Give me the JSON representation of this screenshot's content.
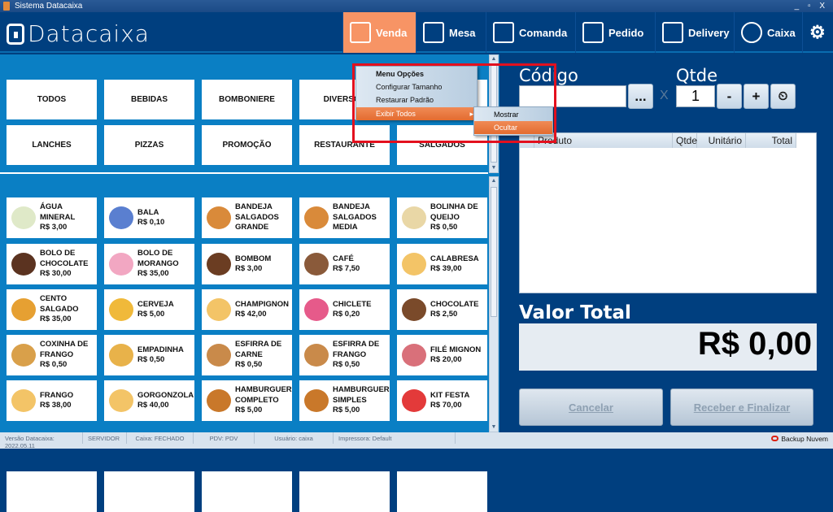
{
  "window": {
    "title": "Sistema Datacaixa",
    "controls": "_ ▫ X"
  },
  "header": {
    "logo": "Datacaixa",
    "nav": [
      {
        "label": "Venda",
        "icon": "cash-register-icon"
      },
      {
        "label": "Mesa",
        "icon": "table-plate-icon"
      },
      {
        "label": "Comanda",
        "icon": "checklist-icon"
      },
      {
        "label": "Pedido",
        "icon": "order-form-icon"
      },
      {
        "label": "Delivery",
        "icon": "delivery-box-icon"
      },
      {
        "label": "Caixa",
        "icon": "dollar-coin-icon"
      }
    ],
    "settings_icon": "gears-icon",
    "accent": "#f79465"
  },
  "categories": [
    "TODOS",
    "BEBIDAS",
    "BOMBONIERE",
    "DIVERSOS",
    "",
    "LANCHES",
    "PIZZAS",
    "PROMOÇÃO",
    "RESTAURANTE",
    "SALGADOS"
  ],
  "products": [
    {
      "name": "ÁGUA MINERAL",
      "price": "R$ 3,00",
      "color": "#dfe9c8"
    },
    {
      "name": "BALA",
      "price": "R$ 0,10",
      "color": "#5a7fd0"
    },
    {
      "name": "BANDEJA SALGADOS GRANDE",
      "price": "",
      "color": "#d98a3a"
    },
    {
      "name": "BANDEJA SALGADOS MEDIA",
      "price": "",
      "color": "#d98a3a"
    },
    {
      "name": "BOLINHA DE QUEIJO",
      "price": "R$ 0,50",
      "color": "#e9d7a6"
    },
    {
      "name": "BOLO DE CHOCOLATE",
      "price": "R$ 30,00",
      "color": "#5b3320"
    },
    {
      "name": "BOLO DE MORANGO",
      "price": "R$ 35,00",
      "color": "#f2a7c2"
    },
    {
      "name": "BOMBOM",
      "price": "R$ 3,00",
      "color": "#6b3d22"
    },
    {
      "name": "CAFÉ",
      "price": "R$ 7,50",
      "color": "#8a5a3a"
    },
    {
      "name": "CALABRESA",
      "price": "R$ 39,00",
      "color": "#f3c467"
    },
    {
      "name": "CENTO SALGADO",
      "price": "R$ 35,00",
      "color": "#e6a032"
    },
    {
      "name": "CERVEJA",
      "price": "R$ 5,00",
      "color": "#f0b93a"
    },
    {
      "name": "CHAMPIGNON",
      "price": "R$ 42,00",
      "color": "#f3c467"
    },
    {
      "name": "CHICLETE",
      "price": "R$ 0,20",
      "color": "#e65a8a"
    },
    {
      "name": "CHOCOLATE",
      "price": "R$ 2,50",
      "color": "#7a4a2a"
    },
    {
      "name": "COXINHA DE FRANGO",
      "price": "R$ 0,50",
      "color": "#d9a04a"
    },
    {
      "name": "EMPADINHA",
      "price": "R$ 0,50",
      "color": "#e8b24a"
    },
    {
      "name": "ESFIRRA DE CARNE",
      "price": "R$ 0,50",
      "color": "#c98a4a"
    },
    {
      "name": "ESFIRRA DE FRANGO",
      "price": "R$ 0,50",
      "color": "#c98a4a"
    },
    {
      "name": "FILÉ MIGNON",
      "price": "R$ 20,00",
      "color": "#d9707a"
    },
    {
      "name": "FRANGO",
      "price": "R$ 38,00",
      "color": "#f3c467"
    },
    {
      "name": "GORGONZOLA",
      "price": "R$ 40,00",
      "color": "#f3c467"
    },
    {
      "name": "HAMBURGUER COMPLETO",
      "price": "R$ 5,00",
      "color": "#c9782a"
    },
    {
      "name": "HAMBURGUER SIMPLES",
      "price": "R$ 5,00",
      "color": "#c9782a"
    },
    {
      "name": "KIT FESTA",
      "price": "R$ 70,00",
      "color": "#e33a3a"
    }
  ],
  "context_menu": {
    "items": [
      "Menu Opções",
      "Configurar Tamanho",
      "Restaurar Padrão",
      "Exibir Todos"
    ],
    "submenu": [
      "Mostrar",
      "Ocultar"
    ]
  },
  "sale": {
    "codigo_label": "Código",
    "codigo_value": "",
    "browse_label": "...",
    "times": "X",
    "qtde_label": "Qtde",
    "qtde_value": "1",
    "minus": "-",
    "plus": "+",
    "scale_icon": "scale-icon",
    "columns": [
      "Produto",
      "Qtde",
      "Unitário",
      "Total"
    ],
    "valor_total_label": "Valor Total",
    "valor_total": "R$ 0,00",
    "cancel_label": "Cancelar",
    "finish_label": "Receber e Finalizar"
  },
  "status": {
    "items": [
      "Versão Datacaixa: 2022.05.11",
      "SERVIDOR",
      "Caixa: FECHADO",
      "PDV: PDV",
      "Usuário: caixa",
      "Impressora: Default"
    ],
    "backup": "Backup Nuvem"
  }
}
